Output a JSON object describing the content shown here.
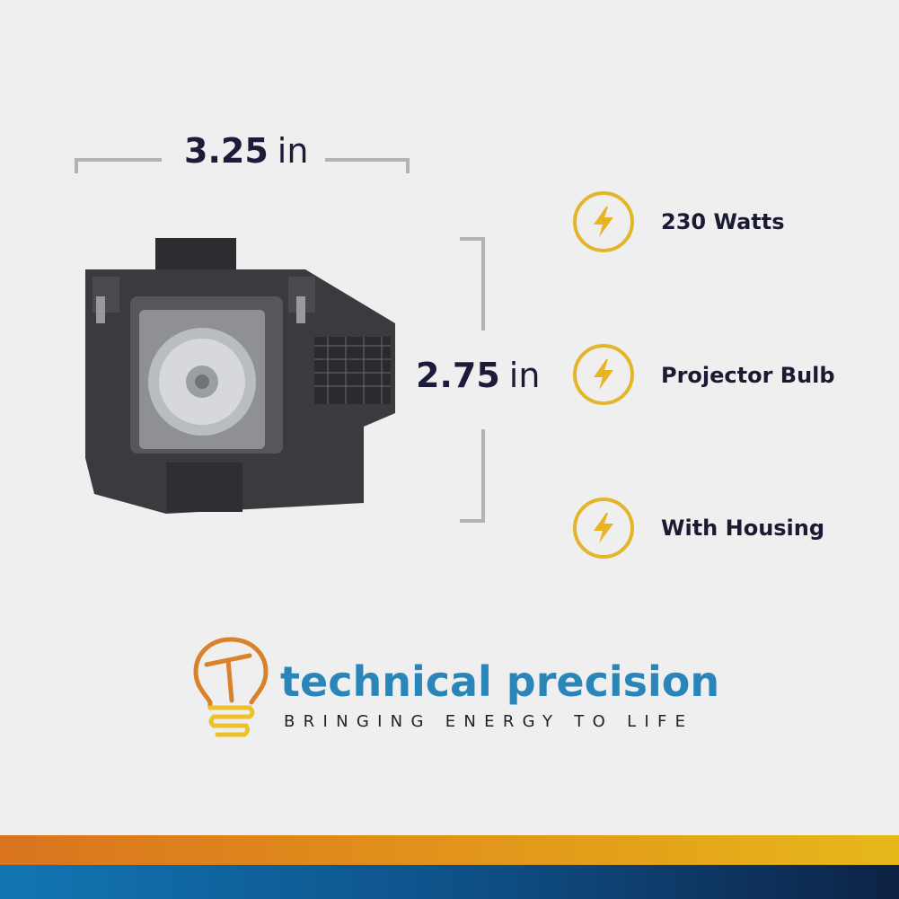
{
  "dimensions": {
    "width": {
      "value": "3.25",
      "unit": "in"
    },
    "height": {
      "value": "2.75",
      "unit": "in"
    }
  },
  "features": [
    {
      "icon": "lightning-bolt-icon",
      "label": "230 Watts"
    },
    {
      "icon": "lightning-bolt-icon",
      "label": "Projector Bulb"
    },
    {
      "icon": "lightning-bolt-icon",
      "label": "With Housing"
    }
  ],
  "brand": {
    "name": "technical precision",
    "tagline": "BRINGING ENERGY TO LIFE",
    "logo_icon": "lightbulb-t-logo"
  },
  "colors": {
    "background": "#efefef",
    "brand_blue": "#2a86b8",
    "accent_gold": "#e3b52a",
    "accent_orange": "#d9731f",
    "text_dark": "#1a1a33"
  }
}
